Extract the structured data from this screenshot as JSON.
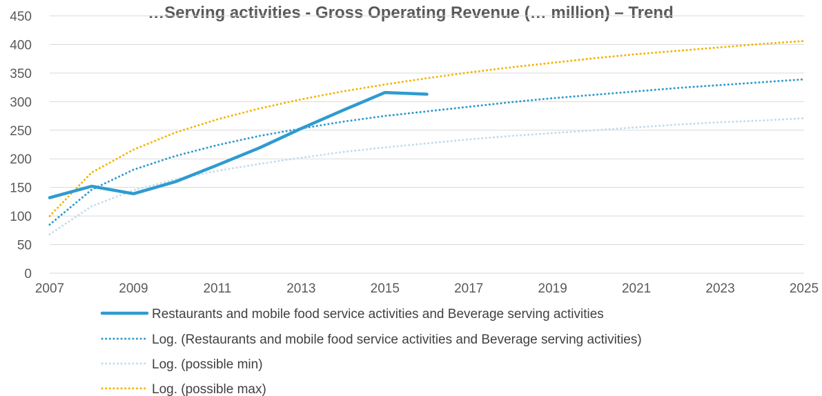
{
  "chart_data": {
    "type": "line",
    "title": "…Serving activities - Gross Operating Revenue (… million) – Trend",
    "xlim": [
      2007,
      2025
    ],
    "ylim": [
      0,
      450
    ],
    "x_ticks": [
      "2007",
      "2009",
      "2011",
      "2013",
      "2015",
      "2017",
      "2019",
      "2021",
      "2023",
      "2025"
    ],
    "y_ticks": [
      "0",
      "50",
      "100",
      "150",
      "200",
      "250",
      "300",
      "350",
      "400",
      "450"
    ],
    "grid": true,
    "legend_position": "bottom",
    "series": [
      {
        "name": "Restaurants and mobile food service activities and Beverage serving activities",
        "style": "solid",
        "color": "#2E9BD0",
        "x": [
          2007,
          2008,
          2009,
          2010,
          2011,
          2012,
          2013,
          2014,
          2015,
          2016
        ],
        "y": [
          132,
          152,
          139,
          160,
          189,
          219,
          253,
          285,
          316,
          313
        ]
      },
      {
        "name": "Log. (Restaurants and mobile food service activities and Beverage serving activities)",
        "style": "dotted",
        "color": "#2E9BD0",
        "x": [
          2007,
          2008,
          2009,
          2010,
          2011,
          2012,
          2013,
          2014,
          2015,
          2016,
          2017,
          2018,
          2019,
          2020,
          2021,
          2022,
          2023,
          2024,
          2025
        ],
        "y": [
          85,
          146,
          181,
          205,
          224,
          240,
          253,
          265,
          275,
          283,
          291,
          299,
          306,
          312,
          318,
          324,
          329,
          334,
          339
        ]
      },
      {
        "name": "Log. (possible min)",
        "style": "dotted",
        "color": "#C5DCEC",
        "x": [
          2007,
          2008,
          2009,
          2010,
          2011,
          2012,
          2013,
          2014,
          2015,
          2016,
          2017,
          2018,
          2019,
          2020,
          2021,
          2022,
          2023,
          2024,
          2025
        ],
        "y": [
          68,
          117,
          145,
          164,
          179,
          191,
          202,
          212,
          220,
          227,
          234,
          240,
          245,
          250,
          255,
          260,
          264,
          267,
          271
        ]
      },
      {
        "name": "Log. (possible max)",
        "style": "dotted",
        "color": "#F5B400",
        "x": [
          2007,
          2008,
          2009,
          2010,
          2011,
          2012,
          2013,
          2014,
          2015,
          2016,
          2017,
          2018,
          2019,
          2020,
          2021,
          2022,
          2023,
          2024,
          2025
        ],
        "y": [
          100,
          176,
          216,
          246,
          269,
          288,
          304,
          318,
          330,
          341,
          351,
          360,
          368,
          376,
          383,
          389,
          395,
          401,
          406
        ]
      }
    ]
  }
}
